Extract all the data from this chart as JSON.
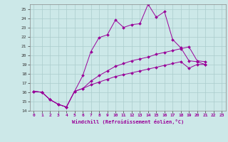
{
  "xlabel": "Windchill (Refroidissement éolien,°C)",
  "bg_color": "#cce8e8",
  "grid_color": "#aacccc",
  "line_color": "#990099",
  "xlim": [
    -0.5,
    23.5
  ],
  "ylim": [
    14,
    25.5
  ],
  "yticks": [
    14,
    15,
    16,
    17,
    18,
    19,
    20,
    21,
    22,
    23,
    24,
    25
  ],
  "xticks": [
    0,
    1,
    2,
    3,
    4,
    5,
    6,
    7,
    8,
    9,
    10,
    11,
    12,
    13,
    14,
    15,
    16,
    17,
    18,
    19,
    20,
    21,
    22,
    23
  ],
  "line1_x": [
    0,
    1,
    2,
    3,
    4,
    5,
    6,
    7,
    8,
    9,
    10,
    11,
    12,
    13,
    14,
    15,
    16,
    17,
    18,
    19,
    20,
    21
  ],
  "line1_y": [
    16.1,
    16.0,
    15.2,
    14.7,
    14.4,
    16.1,
    17.8,
    20.4,
    21.9,
    22.2,
    23.8,
    23.0,
    23.3,
    23.4,
    25.5,
    24.1,
    24.7,
    21.7,
    20.8,
    19.4,
    19.3,
    19.0
  ],
  "line2_x": [
    0,
    1,
    2,
    3,
    4,
    5,
    6,
    7,
    8,
    9,
    10,
    11,
    12,
    13,
    14,
    15,
    16,
    17,
    18,
    19,
    20,
    21
  ],
  "line2_y": [
    16.1,
    16.0,
    15.2,
    14.7,
    14.4,
    16.1,
    16.4,
    17.2,
    17.8,
    18.3,
    18.8,
    19.1,
    19.4,
    19.6,
    19.8,
    20.1,
    20.3,
    20.5,
    20.7,
    20.9,
    19.4,
    19.3
  ],
  "line3_x": [
    0,
    1,
    2,
    3,
    4,
    5,
    6,
    7,
    8,
    9,
    10,
    11,
    12,
    13,
    14,
    15,
    16,
    17,
    18,
    19,
    20,
    21
  ],
  "line3_y": [
    16.1,
    16.0,
    15.2,
    14.7,
    14.4,
    16.1,
    16.4,
    16.8,
    17.1,
    17.4,
    17.7,
    17.9,
    18.1,
    18.3,
    18.5,
    18.7,
    18.9,
    19.1,
    19.3,
    18.6,
    19.0,
    19.0
  ]
}
